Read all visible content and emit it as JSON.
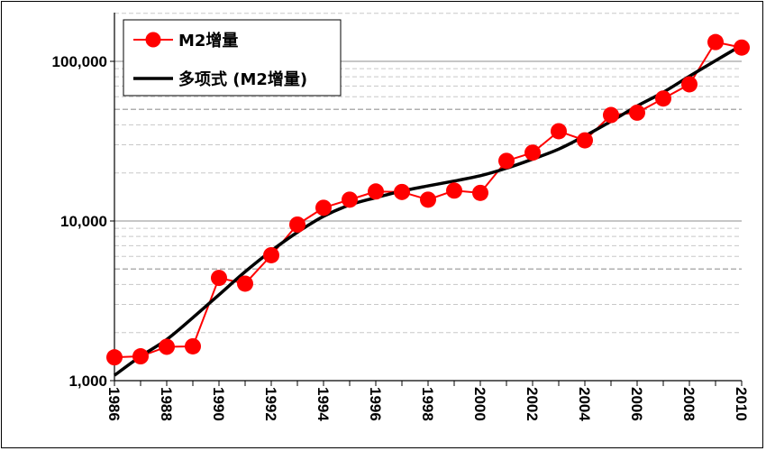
{
  "chart_data": {
    "type": "line",
    "scale": "log",
    "title": "",
    "xlabel": "",
    "ylabel": "",
    "ylim": [
      1000,
      200000
    ],
    "xlim": [
      1986,
      2010
    ],
    "y_ticks": [
      {
        "value": 1000,
        "label": "1,000"
      },
      {
        "value": 10000,
        "label": "10,000"
      },
      {
        "value": 100000,
        "label": "100,000"
      }
    ],
    "x_ticks": [
      {
        "value": 1986,
        "label": "1986"
      },
      {
        "value": 1988,
        "label": "1988"
      },
      {
        "value": 1990,
        "label": "1990"
      },
      {
        "value": 1992,
        "label": "1992"
      },
      {
        "value": 1994,
        "label": "1994"
      },
      {
        "value": 1996,
        "label": "1996"
      },
      {
        "value": 1998,
        "label": "1998"
      },
      {
        "value": 2000,
        "label": "2000"
      },
      {
        "value": 2002,
        "label": "2002"
      },
      {
        "value": 2004,
        "label": "2004"
      },
      {
        "value": 2006,
        "label": "2006"
      },
      {
        "value": 2008,
        "label": "2008"
      },
      {
        "value": 2010,
        "label": "2010"
      }
    ],
    "series": [
      {
        "name": "M2增量",
        "color": "#ff0000",
        "marker": "circle",
        "x": [
          1986,
          1987,
          1988,
          1989,
          1990,
          1991,
          1992,
          1993,
          1994,
          1995,
          1996,
          1997,
          1998,
          1999,
          2000,
          2001,
          2002,
          2003,
          2004,
          2005,
          2006,
          2007,
          2008,
          2009,
          2010
        ],
        "values": [
          1400,
          1420,
          1630,
          1640,
          4400,
          4050,
          6100,
          9500,
          12100,
          13600,
          15300,
          15200,
          13600,
          15500,
          15000,
          23800,
          26800,
          36500,
          32000,
          46100,
          47700,
          58500,
          71800,
          132000,
          122000
        ]
      },
      {
        "name": "多项式 (M2增量)",
        "color": "#000000",
        "marker": "none",
        "x": [
          1986,
          1987,
          1988,
          1989,
          1990,
          1991,
          1992,
          1993,
          1994,
          1995,
          1996,
          1997,
          1998,
          1999,
          2000,
          2001,
          2002,
          2003,
          2004,
          2005,
          2006,
          2007,
          2008,
          2009,
          2010
        ],
        "values": [
          1080,
          1420,
          1810,
          2480,
          3450,
          4810,
          6500,
          8500,
          10700,
          12600,
          14000,
          15400,
          16600,
          17800,
          19200,
          21400,
          24400,
          28200,
          34100,
          42100,
          52500,
          64000,
          80700,
          101000,
          126000
        ]
      }
    ],
    "legend": {
      "position": "top-left",
      "entries": [
        "M2增量",
        "多项式 (M2增量)"
      ]
    },
    "grid": {
      "major": true,
      "minor": true,
      "dash_at": [
        5000,
        50000
      ]
    }
  }
}
